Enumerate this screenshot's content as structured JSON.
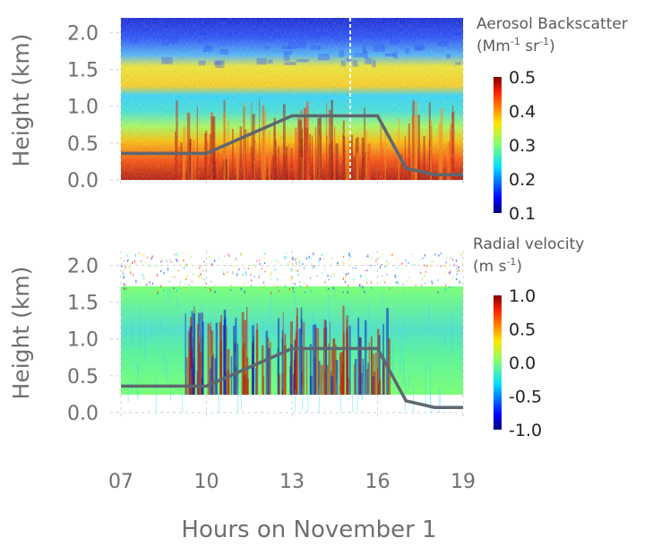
{
  "xlabel": "Hours on November 1",
  "x_ticks": [
    "07",
    "10",
    "13",
    "16",
    "19"
  ],
  "chart_data": [
    {
      "type": "heatmap",
      "panel": "top",
      "ylabel": "Height (km)",
      "x_range": [
        7,
        19
      ],
      "ylim": [
        0.0,
        2.2
      ],
      "y_ticks": [
        "0.0",
        "0.5",
        "1.0",
        "1.5",
        "2.0"
      ],
      "colorbar": {
        "title_line1": "Aerosol Backscatter",
        "title_line2": "(Mm-1 sr-1)",
        "range": [
          0.1,
          0.5
        ],
        "ticks": [
          "0.1",
          "0.2",
          "0.3",
          "0.4",
          "0.5"
        ]
      },
      "boundary_layer_height": {
        "x": [
          7,
          10,
          13,
          16,
          17,
          18,
          19
        ],
        "y": [
          0.36,
          0.36,
          0.87,
          0.87,
          0.16,
          0.07,
          0.07
        ]
      }
    },
    {
      "type": "heatmap",
      "panel": "bottom",
      "ylabel": "Height (km)",
      "x_range": [
        7,
        19
      ],
      "ylim": [
        0.0,
        2.2
      ],
      "y_ticks": [
        "0.0",
        "0.5",
        "1.0",
        "1.5",
        "2.0"
      ],
      "colorbar": {
        "title_line1": "Radial velocity",
        "title_line2": "(m s-1)",
        "range": [
          -1.0,
          1.0
        ],
        "ticks": [
          "-1.0",
          "-0.5",
          "0.0",
          "0.5",
          "1.0"
        ]
      },
      "boundary_layer_height": {
        "x": [
          7,
          10,
          13,
          16,
          17,
          18,
          19
        ],
        "y": [
          0.36,
          0.36,
          0.87,
          0.87,
          0.16,
          0.07,
          0.07
        ]
      }
    }
  ]
}
